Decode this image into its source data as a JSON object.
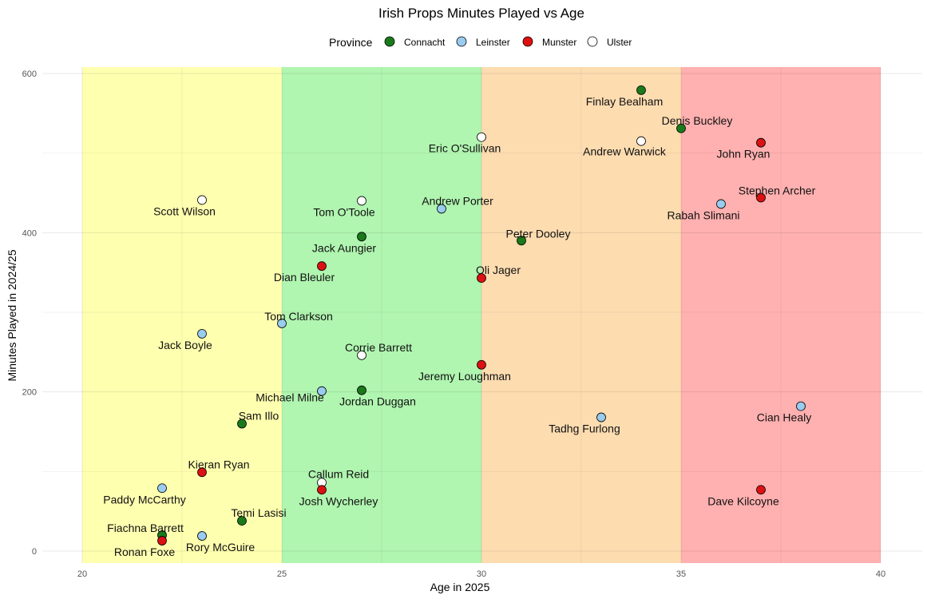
{
  "chart_data": {
    "type": "scatter",
    "title": "Irish Props Minutes Played vs Age",
    "xlabel": "Age in 2025",
    "ylabel": "Minutes Played in 2024/25",
    "xlim": [
      20,
      40
    ],
    "ylim": [
      0,
      600
    ],
    "xticks": [
      20,
      25,
      30,
      35,
      40
    ],
    "yticks": [
      0,
      200,
      400,
      600
    ],
    "grid": true,
    "legend": {
      "title": "Province",
      "placement": "top",
      "entries": [
        {
          "name": "Connacht",
          "color": "#1a7a1a"
        },
        {
          "name": "Leinster",
          "color": "#99ccee"
        },
        {
          "name": "Munster",
          "color": "#dd1111"
        },
        {
          "name": "Ulster",
          "color": "#ffffff"
        }
      ]
    },
    "bands": [
      {
        "from": 20,
        "to": 25,
        "color": "#ffffb0"
      },
      {
        "from": 25,
        "to": 30,
        "color": "#b0f5b0"
      },
      {
        "from": 30,
        "to": 35,
        "color": "#fddcb0"
      },
      {
        "from": 35,
        "to": 40,
        "color": "#ffb0b0"
      }
    ],
    "points": [
      {
        "name": "Finlay Bealham",
        "x": 34,
        "y": 579,
        "province": "Connacht"
      },
      {
        "name": "Denis Buckley",
        "x": 35,
        "y": 531,
        "province": "Connacht"
      },
      {
        "name": "John Ryan",
        "x": 37,
        "y": 513,
        "province": "Munster"
      },
      {
        "name": "Andrew Warwick",
        "x": 34,
        "y": 515,
        "province": "Ulster"
      },
      {
        "name": "Eric O'Sullivan",
        "x": 30,
        "y": 520,
        "province": "Ulster"
      },
      {
        "name": "Stephen Archer",
        "x": 37,
        "y": 444,
        "province": "Munster"
      },
      {
        "name": "Rabah Slimani",
        "x": 36,
        "y": 436,
        "province": "Leinster"
      },
      {
        "name": "Scott Wilson",
        "x": 23,
        "y": 441,
        "province": "Ulster"
      },
      {
        "name": "Tom O'Toole",
        "x": 27,
        "y": 440,
        "province": "Ulster"
      },
      {
        "name": "Andrew Porter",
        "x": 29,
        "y": 430,
        "province": "Leinster"
      },
      {
        "name": "Jack Aungier",
        "x": 27,
        "y": 395,
        "province": "Connacht"
      },
      {
        "name": "Peter Dooley",
        "x": 31,
        "y": 390,
        "province": "Connacht"
      },
      {
        "name": "Dian Bleuler",
        "x": 26,
        "y": 358,
        "province": "Munster"
      },
      {
        "name": "Oli Jager",
        "x": 30,
        "y": 343,
        "province": "Munster"
      },
      {
        "name": "Tom Clarkson",
        "x": 25,
        "y": 286,
        "province": "Leinster"
      },
      {
        "name": "Jack Boyle",
        "x": 23,
        "y": 273,
        "province": "Leinster"
      },
      {
        "name": "Corrie Barrett",
        "x": 27,
        "y": 246,
        "province": "Ulster"
      },
      {
        "name": "Jeremy Loughman",
        "x": 30,
        "y": 234,
        "province": "Munster"
      },
      {
        "name": "Michael Milne",
        "x": 26,
        "y": 201,
        "province": "Leinster"
      },
      {
        "name": "Jordan Duggan",
        "x": 27,
        "y": 202,
        "province": "Connacht"
      },
      {
        "name": "Cian Healy",
        "x": 38,
        "y": 182,
        "province": "Leinster"
      },
      {
        "name": "Tadhg Furlong",
        "x": 33,
        "y": 168,
        "province": "Leinster"
      },
      {
        "name": "Sam Illo",
        "x": 24,
        "y": 160,
        "province": "Connacht"
      },
      {
        "name": "Kieran Ryan",
        "x": 23,
        "y": 99,
        "province": "Munster"
      },
      {
        "name": "Paddy McCarthy",
        "x": 22,
        "y": 79,
        "province": "Leinster"
      },
      {
        "name": "Callum Reid",
        "x": 26,
        "y": 86,
        "province": "Ulster"
      },
      {
        "name": "Josh Wycherley",
        "x": 26,
        "y": 77,
        "province": "Munster"
      },
      {
        "name": "Dave Kilcoyne",
        "x": 37,
        "y": 77,
        "province": "Munster"
      },
      {
        "name": "Temi Lasisi",
        "x": 24,
        "y": 38,
        "province": "Connacht"
      },
      {
        "name": "Fiachna Barrett",
        "x": 22,
        "y": 20,
        "province": "Connacht"
      },
      {
        "name": "Rory McGuire",
        "x": 23,
        "y": 19,
        "province": "Leinster"
      },
      {
        "name": "Ronan Foxe",
        "x": 22,
        "y": 13,
        "province": "Munster"
      }
    ]
  }
}
